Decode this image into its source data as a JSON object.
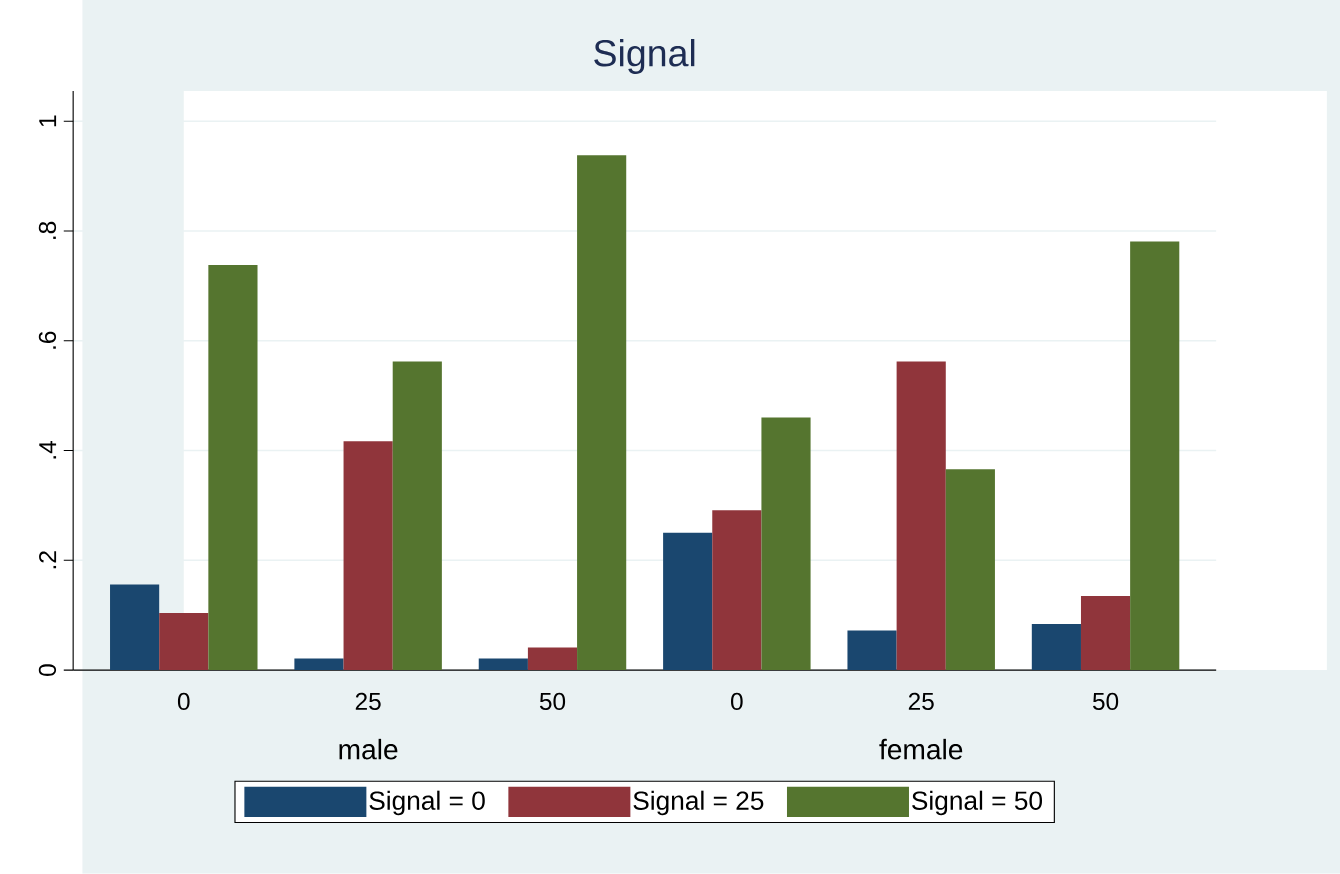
{
  "chart_data": {
    "type": "bar",
    "title": "Signal",
    "categories": [
      "0",
      "25",
      "50",
      "0",
      "25",
      "50"
    ],
    "series": [
      {
        "name": "Signal = 0",
        "color": "#1a476f",
        "values": [
          0.156,
          0.021,
          0.021,
          0.25,
          0.072,
          0.084
        ]
      },
      {
        "name": "Signal = 25",
        "color": "#90353b",
        "values": [
          0.104,
          0.417,
          0.041,
          0.291,
          0.562,
          0.135
        ]
      },
      {
        "name": "Signal = 50",
        "color": "#55752f",
        "values": [
          0.738,
          0.562,
          0.938,
          0.46,
          0.366,
          0.781
        ]
      }
    ],
    "ylim": [
      0,
      1.055
    ],
    "yticks": [
      0,
      {
        "value": 0.2,
        "label": ".2"
      },
      {
        "value": 0.4,
        "label": ".4"
      },
      {
        "value": 0.6,
        "label": ".6"
      },
      {
        "value": 0.8,
        "label": ".8"
      },
      1
    ],
    "grid": "y",
    "legend": "bottom",
    "annotations": [
      "male",
      "female"
    ]
  }
}
